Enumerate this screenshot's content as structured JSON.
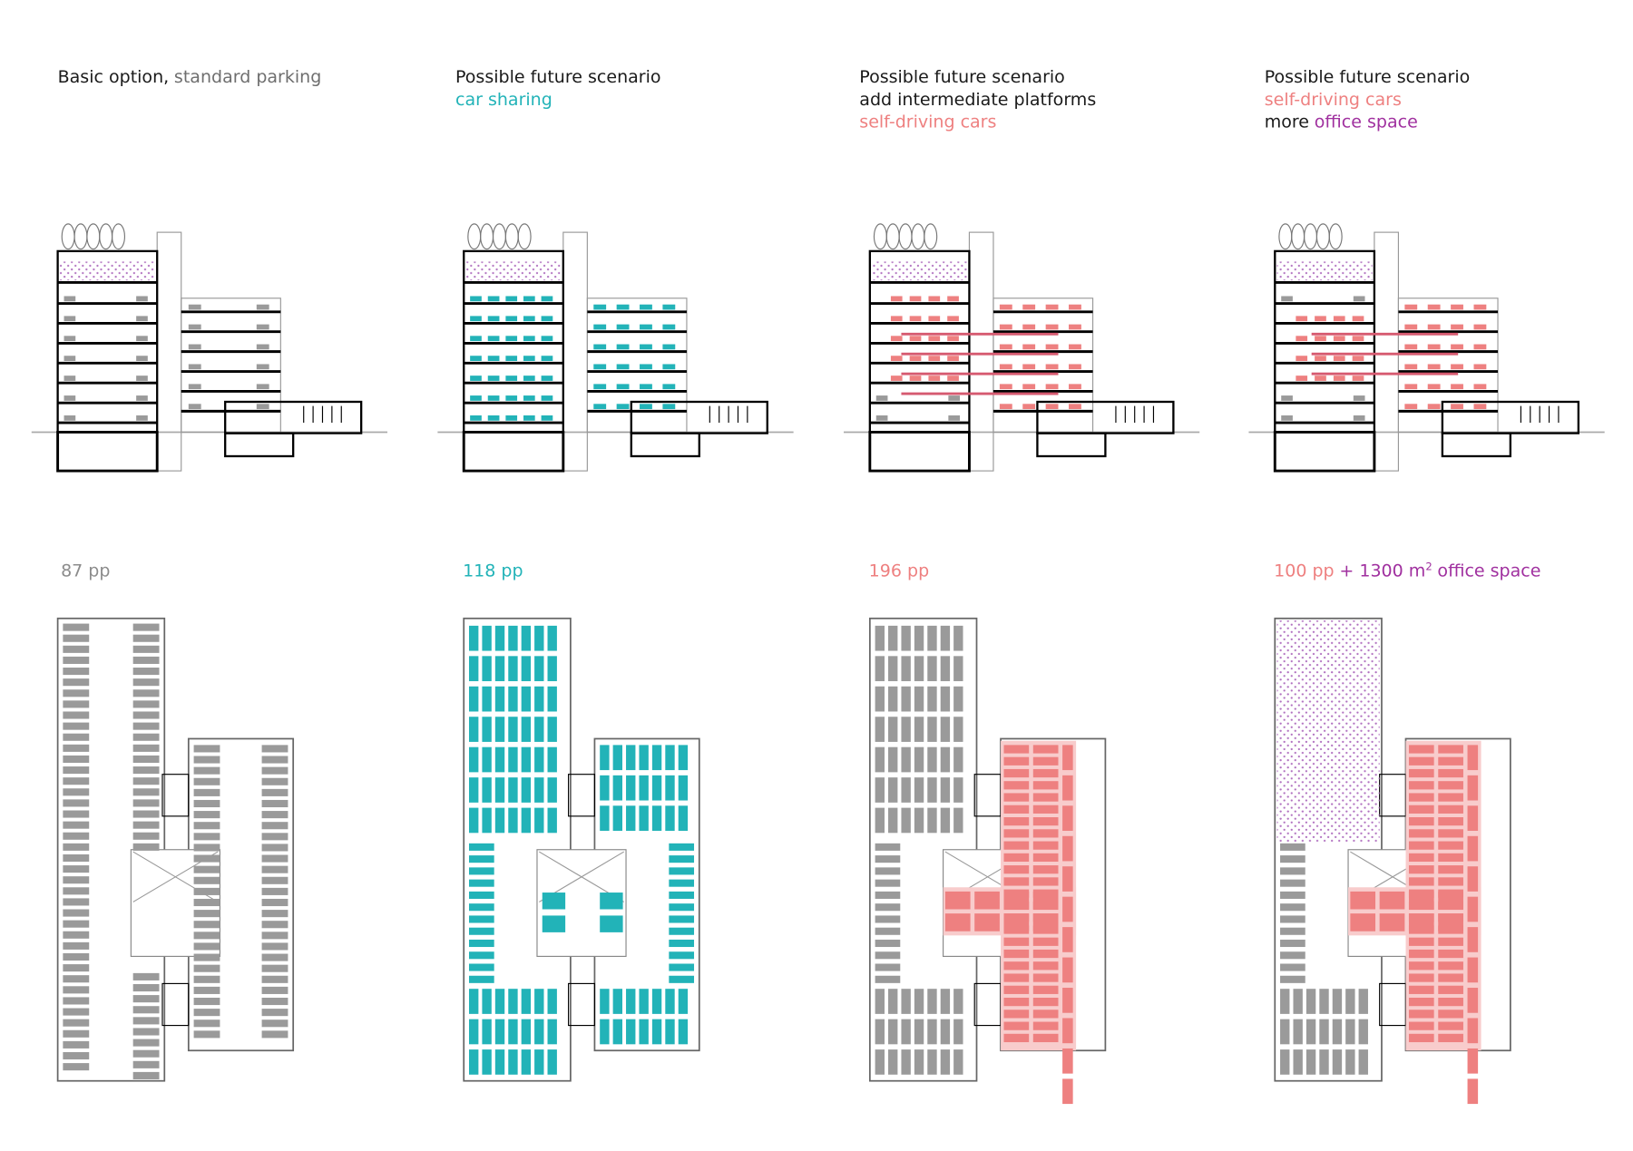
{
  "scenarios": [
    {
      "heading": [
        [
          {
            "text": "Basic option,",
            "color": "#1a1a1a"
          },
          {
            "text": "standard parking",
            "color": "#6e6e6e"
          }
        ]
      ],
      "capacity": [
        {
          "text": "87 pp",
          "color": "#8c8c8c"
        }
      ]
    },
    {
      "heading": [
        [
          {
            "text": "Possible future scenario",
            "color": "#1a1a1a"
          }
        ],
        [
          {
            "text": "car sharing",
            "color": "#22b3b8"
          }
        ]
      ],
      "capacity": [
        {
          "text": "118 pp",
          "color": "#22b3b8"
        }
      ]
    },
    {
      "heading": [
        [
          {
            "text": "Possible future scenario",
            "color": "#1a1a1a"
          }
        ],
        [
          {
            "text": "add intermediate platforms",
            "color": "#1a1a1a"
          }
        ],
        [
          {
            "text": "self-driving cars",
            "color": "#ee8080"
          }
        ]
      ],
      "capacity": [
        {
          "text": "196 pp",
          "color": "#ee8080"
        }
      ]
    },
    {
      "heading": [
        [
          {
            "text": "Possible future scenario",
            "color": "#1a1a1a"
          }
        ],
        [
          {
            "text": "self-driving cars",
            "color": "#ee8080"
          }
        ],
        [
          {
            "text": "more",
            "color": "#1a1a1a"
          },
          {
            "text": "office space",
            "color": "#a0309f"
          }
        ]
      ],
      "capacity": [
        {
          "text": "100 pp",
          "color": "#ee8080"
        },
        {
          "text": "+ 1300 m",
          "color": "#a0309f"
        },
        {
          "text": "2",
          "color": "#a0309f",
          "sup": true
        },
        {
          "text": "office space",
          "color": "#a0309f"
        }
      ]
    }
  ]
}
